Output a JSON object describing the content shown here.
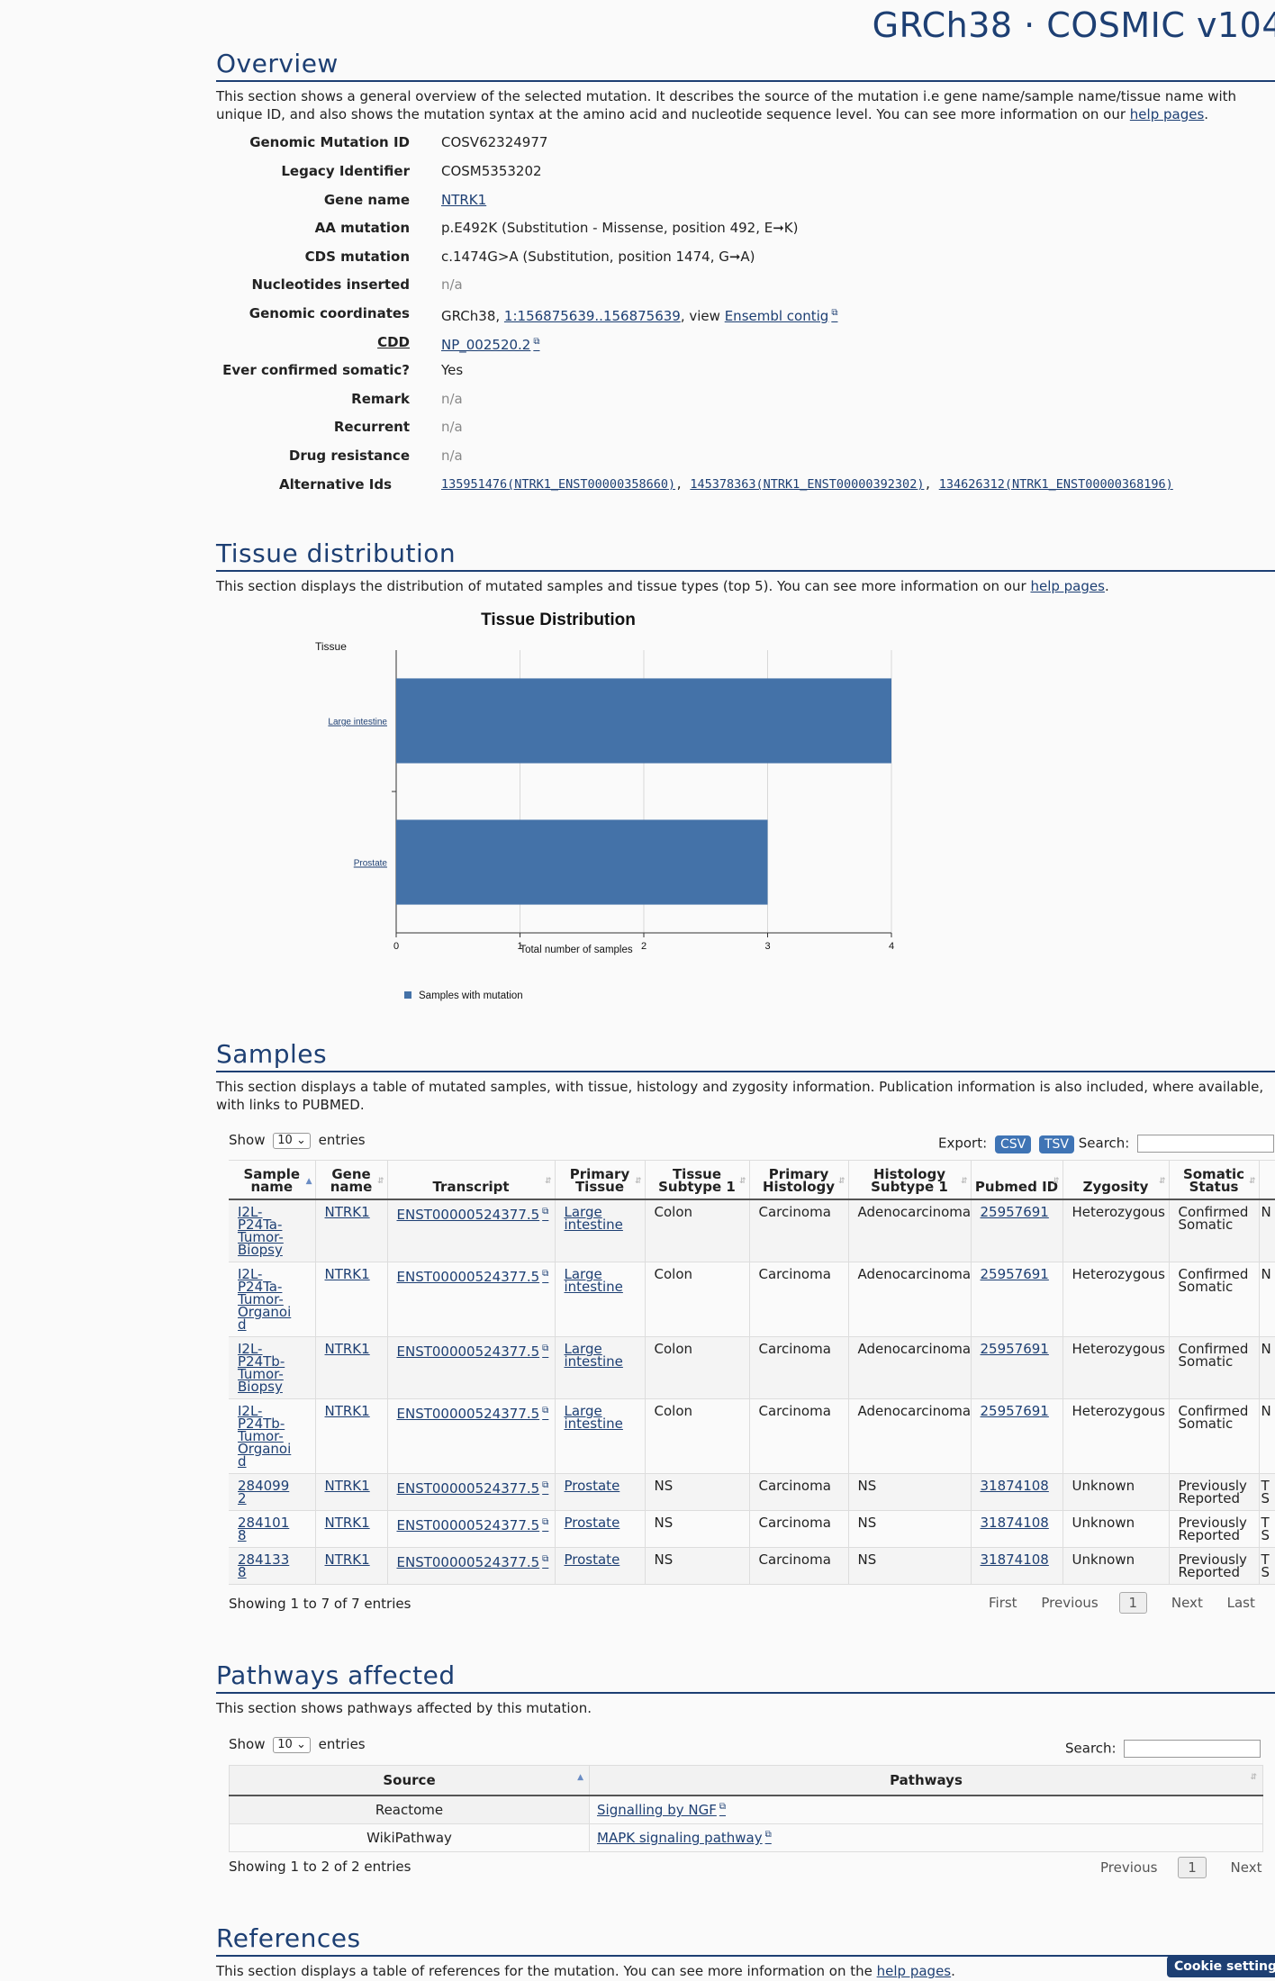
{
  "header": {
    "brand": "GRCh38 · COSMIC v104"
  },
  "overview": {
    "title": "Overview",
    "description": "This section shows a general overview of the selected mutation. It describes the source of the mutation i.e gene name/sample name/tissue name with unique ID, and also shows the mutation syntax at the amino acid and nucleotide sequence level. You can see more information on our",
    "help_link": "help pages",
    "fields": {
      "genomic_mutation_id": {
        "label": "Genomic Mutation ID",
        "value": "COSV62324977"
      },
      "legacy_identifier": {
        "label": "Legacy Identifier",
        "value": "COSM5353202"
      },
      "gene_name": {
        "label": "Gene name",
        "value": "NTRK1"
      },
      "aa_mutation": {
        "label": "AA mutation",
        "value": "p.E492K (Substitution - Missense, position 492, E➞K)"
      },
      "cds_mutation": {
        "label": "CDS mutation",
        "value": "c.1474G>A (Substitution, position 1474, G➞A)"
      },
      "nucleotides_inserted": {
        "label": "Nucleotides inserted",
        "value": "n/a"
      },
      "genomic_coordinates": {
        "label": "Genomic coordinates",
        "prefix": "GRCh38,",
        "coord_link": "1:156875639..156875639",
        "mid": ", view",
        "contig_link": "Ensembl contig"
      },
      "cdd": {
        "label": "CDD",
        "value": "NP_002520.2"
      },
      "ever_confirmed_somatic": {
        "label": "Ever confirmed somatic?",
        "value": "Yes"
      },
      "remark": {
        "label": "Remark",
        "value": "n/a"
      },
      "recurrent": {
        "label": "Recurrent",
        "value": "n/a"
      },
      "drug_resistance": {
        "label": "Drug resistance",
        "value": "n/a"
      },
      "alternative_ids": {
        "label": "Alternative Ids",
        "ids": [
          "135951476(NTRK1_ENST00000358660)",
          "145378363(NTRK1_ENST00000392302)",
          "134626312(NTRK1_ENST00000368196)"
        ]
      }
    }
  },
  "tissue": {
    "title": "Tissue distribution",
    "description": "This section displays the distribution of mutated samples and tissue types (top 5). You can see more information on our",
    "help_link": "help pages"
  },
  "chart_data": {
    "type": "bar",
    "orientation": "horizontal",
    "title": "Tissue Distribution",
    "ylabel": "Tissue",
    "xlabel": "Total number of samples",
    "categories": [
      "Large intestine",
      "Prostate"
    ],
    "series": [
      {
        "name": "Samples with mutation",
        "values": [
          4,
          3
        ],
        "color": "#4472a8"
      }
    ],
    "xlim": [
      0,
      4
    ],
    "xticks": [
      "0",
      "1",
      "2",
      "3",
      "4"
    ],
    "grid": true,
    "legend": "bottom"
  },
  "samples": {
    "title": "Samples",
    "description": "This section displays a table of mutated samples, with tissue, histology and zygosity information. Publication information is also included, where available, with links to PUBMED.",
    "show_label": "Show",
    "entries_label": "entries",
    "page_size": "10",
    "export_label": "Export:",
    "csv": "CSV",
    "tsv": "TSV",
    "search_label": "Search:",
    "columns": [
      "Sample name",
      "Gene name",
      "Transcript",
      "Primary Tissue",
      "Tissue Subtype 1",
      "Primary Histology",
      "Histology Subtype 1",
      "Pubmed ID",
      "Zygosity",
      "Somatic Status",
      ""
    ],
    "rows": [
      [
        "I2L-P24Ta-Tumor-Biopsy",
        "NTRK1",
        "ENST00000524377.5",
        "Large intestine",
        "Colon",
        "Carcinoma",
        "Adenocarcinoma",
        "25957691",
        "Heterozygous",
        "Confirmed Somatic",
        "N"
      ],
      [
        "I2L-P24Ta-Tumor-Organoid",
        "NTRK1",
        "ENST00000524377.5",
        "Large intestine",
        "Colon",
        "Carcinoma",
        "Adenocarcinoma",
        "25957691",
        "Heterozygous",
        "Confirmed Somatic",
        "N"
      ],
      [
        "I2L-P24Tb-Tumor-Biopsy",
        "NTRK1",
        "ENST00000524377.5",
        "Large intestine",
        "Colon",
        "Carcinoma",
        "Adenocarcinoma",
        "25957691",
        "Heterozygous",
        "Confirmed Somatic",
        "N"
      ],
      [
        "I2L-P24Tb-Tumor-Organoid",
        "NTRK1",
        "ENST00000524377.5",
        "Large intestine",
        "Colon",
        "Carcinoma",
        "Adenocarcinoma",
        "25957691",
        "Heterozygous",
        "Confirmed Somatic",
        "N"
      ],
      [
        "2840992",
        "NTRK1",
        "ENST00000524377.5",
        "Prostate",
        "NS",
        "Carcinoma",
        "NS",
        "31874108",
        "Unknown",
        "Previously Reported",
        "T S"
      ],
      [
        "2841018",
        "NTRK1",
        "ENST00000524377.5",
        "Prostate",
        "NS",
        "Carcinoma",
        "NS",
        "31874108",
        "Unknown",
        "Previously Reported",
        "T S"
      ],
      [
        "2841338",
        "NTRK1",
        "ENST00000524377.5",
        "Prostate",
        "NS",
        "Carcinoma",
        "NS",
        "31874108",
        "Unknown",
        "Previously Reported",
        "T S"
      ]
    ],
    "showing": "Showing 1 to 7 of 7 entries",
    "pager": {
      "first": "First",
      "previous": "Previous",
      "current": "1",
      "next": "Next",
      "last": "Last"
    }
  },
  "pathways": {
    "title": "Pathways affected",
    "description": "This section shows pathways affected by this mutation.",
    "show_label": "Show",
    "entries_label": "entries",
    "page_size": "10",
    "search_label": "Search:",
    "columns": [
      "Source",
      "Pathways"
    ],
    "rows": [
      [
        "Reactome",
        "Signalling by NGF"
      ],
      [
        "WikiPathway",
        "MAPK signaling pathway"
      ]
    ],
    "showing": "Showing 1 to 2 of 2 entries",
    "pager": {
      "previous": "Previous",
      "current": "1",
      "next": "Next"
    }
  },
  "references": {
    "title": "References",
    "description": "This section displays a table of references for the mutation. You can see more information on the",
    "help_link": "help pages"
  },
  "cookie_button": "Cookie settings"
}
